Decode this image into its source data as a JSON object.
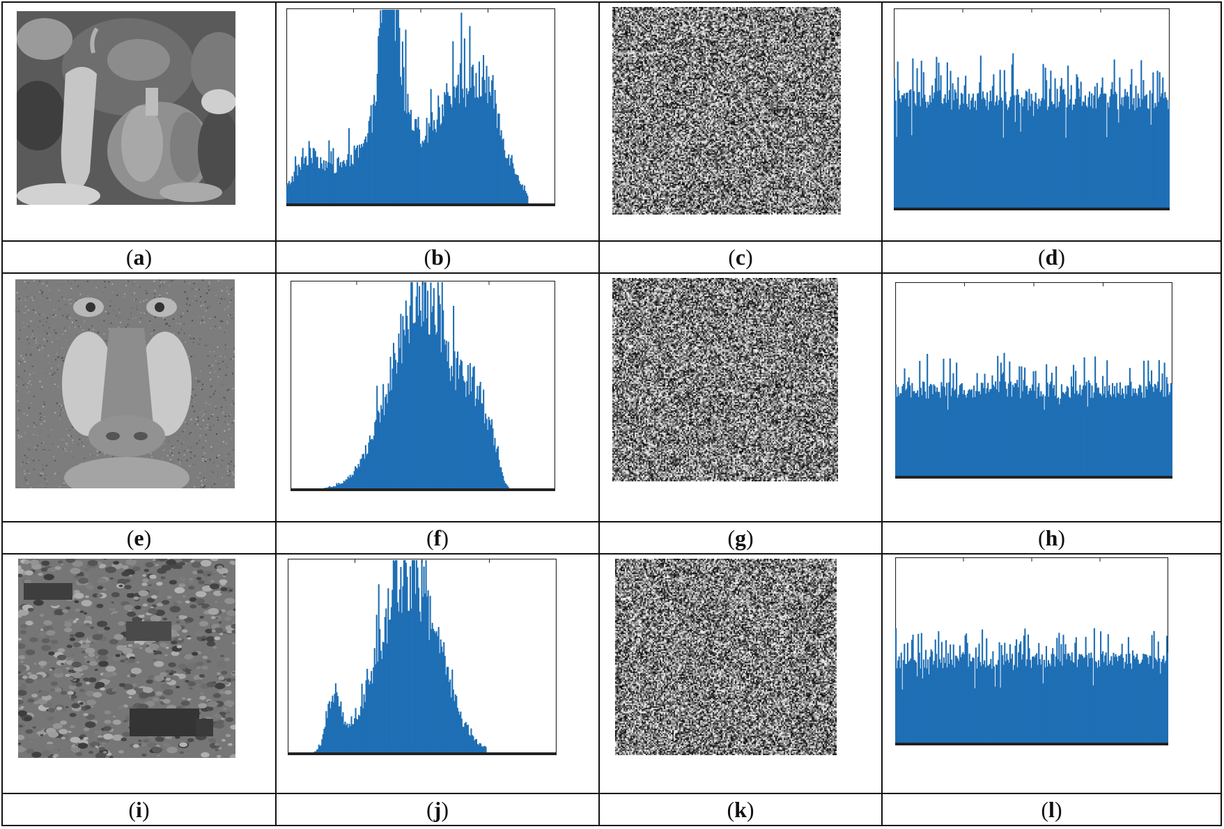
{
  "labels": [
    "(a)",
    "(b)",
    "(c)",
    "(d)",
    "(e)",
    "(f)",
    "(g)",
    "(h)",
    "(i)",
    "(j)",
    "(k)",
    "(l)"
  ],
  "colors": {
    "histogram": "#1f6fb5",
    "frame": "#111111"
  },
  "rows": [
    {
      "image": "peppers-grayscale-image",
      "histogram_shape": "multimodal",
      "cipher": "encrypted-noise-image",
      "cipher_histogram": "uniform"
    },
    {
      "image": "baboon-grayscale-image",
      "histogram_shape": "unimodal",
      "cipher": "encrypted-noise-image",
      "cipher_histogram": "uniform"
    },
    {
      "image": "terrain-with-vehicles-grayscale-image",
      "histogram_shape": "bimodal",
      "cipher": "encrypted-noise-image",
      "cipher_histogram": "uniform"
    }
  ],
  "chart_data": [
    {
      "type": "bar",
      "panel": "(b)",
      "shape": "multimodal",
      "bins": 256,
      "ylim": [
        0,
        1
      ]
    },
    {
      "type": "bar",
      "panel": "(d)",
      "shape": "uniform",
      "bins": 256,
      "level": 0.55
    },
    {
      "type": "bar",
      "panel": "(f)",
      "shape": "unimodal",
      "bins": 256
    },
    {
      "type": "bar",
      "panel": "(h)",
      "shape": "uniform",
      "bins": 256,
      "level": 0.45
    },
    {
      "type": "bar",
      "panel": "(j)",
      "shape": "bimodal",
      "bins": 256
    },
    {
      "type": "bar",
      "panel": "(l)",
      "shape": "uniform",
      "bins": 256,
      "level": 0.45
    }
  ]
}
